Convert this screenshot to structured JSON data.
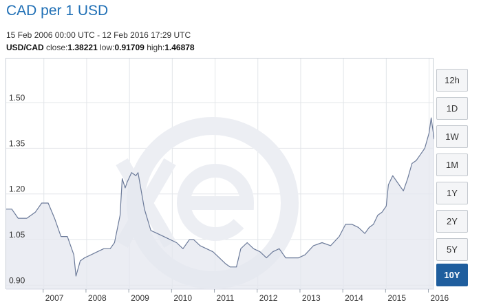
{
  "header": {
    "title": "CAD per 1 USD",
    "date_range": "15 Feb 2006 00:00 UTC - 12 Feb 2016 17:29 UTC",
    "pair": "USD/CAD",
    "close_label": "close:",
    "close_value": "1.38221",
    "low_label": "low:",
    "low_value": "0.91709",
    "high_label": "high:",
    "high_value": "1.46878"
  },
  "range_buttons": {
    "b12h": "12h",
    "b1d": "1D",
    "b1w": "1W",
    "b1m": "1M",
    "b1y": "1Y",
    "b2y": "2Y",
    "b5y": "5Y",
    "b10y": "10Y",
    "active": "10Y"
  },
  "colors": {
    "title": "#1f6fb5",
    "line": "#6b7a99",
    "area": "#e4e7ef",
    "active_button": "#1f5e9e",
    "grid": "#e2e5e9",
    "watermark": "#eef0f4"
  },
  "watermark_icon": "xe-logo",
  "chart_data": {
    "type": "area",
    "title": "CAD per 1 USD",
    "xlabel": "",
    "ylabel": "",
    "x_ticks": [
      "2007",
      "2008",
      "2009",
      "2010",
      "2011",
      "2012",
      "2013",
      "2014",
      "2015",
      "2016"
    ],
    "y_ticks": [
      "0.90",
      "1.05",
      "1.20",
      "1.35",
      "1.50"
    ],
    "ylim": [
      0.885,
      1.645
    ],
    "xlim": [
      2006.12,
      2016.12
    ],
    "grid": true,
    "series": [
      {
        "x": [
          2006.12,
          2006.25,
          2006.4,
          2006.6,
          2006.8,
          2006.95,
          2007.1,
          2007.25,
          2007.4,
          2007.55,
          2007.7,
          2007.75,
          2007.85,
          2007.95,
          2008.1,
          2008.25,
          2008.4,
          2008.55,
          2008.65,
          2008.78,
          2008.83,
          2008.9,
          2008.95,
          2009.05,
          2009.15,
          2009.2,
          2009.35,
          2009.5,
          2009.65,
          2009.8,
          2009.95,
          2010.1,
          2010.25,
          2010.4,
          2010.5,
          2010.65,
          2010.8,
          2010.95,
          2011.1,
          2011.25,
          2011.35,
          2011.5,
          2011.6,
          2011.75,
          2011.9,
          2012.05,
          2012.2,
          2012.35,
          2012.5,
          2012.65,
          2012.8,
          2012.95,
          2013.1,
          2013.3,
          2013.5,
          2013.7,
          2013.9,
          2014.05,
          2014.2,
          2014.35,
          2014.5,
          2014.6,
          2014.7,
          2014.8,
          2014.9,
          2015.0,
          2015.05,
          2015.15,
          2015.3,
          2015.4,
          2015.5,
          2015.6,
          2015.7,
          2015.8,
          2015.9,
          2016.0,
          2016.05,
          2016.09,
          2016.12
        ],
        "values": [
          1.15,
          1.15,
          1.12,
          1.12,
          1.14,
          1.17,
          1.17,
          1.12,
          1.06,
          1.06,
          1.0,
          0.93,
          0.98,
          0.99,
          1.0,
          1.01,
          1.02,
          1.02,
          1.04,
          1.13,
          1.25,
          1.22,
          1.24,
          1.27,
          1.26,
          1.27,
          1.15,
          1.08,
          1.07,
          1.06,
          1.05,
          1.04,
          1.02,
          1.05,
          1.05,
          1.03,
          1.02,
          1.01,
          0.99,
          0.97,
          0.96,
          0.96,
          1.02,
          1.04,
          1.02,
          1.01,
          0.99,
          1.01,
          1.02,
          0.99,
          0.99,
          0.99,
          1.0,
          1.03,
          1.04,
          1.03,
          1.06,
          1.1,
          1.1,
          1.09,
          1.07,
          1.09,
          1.1,
          1.13,
          1.14,
          1.16,
          1.23,
          1.26,
          1.23,
          1.21,
          1.25,
          1.3,
          1.31,
          1.33,
          1.35,
          1.4,
          1.45,
          1.41,
          1.38
        ]
      }
    ]
  }
}
